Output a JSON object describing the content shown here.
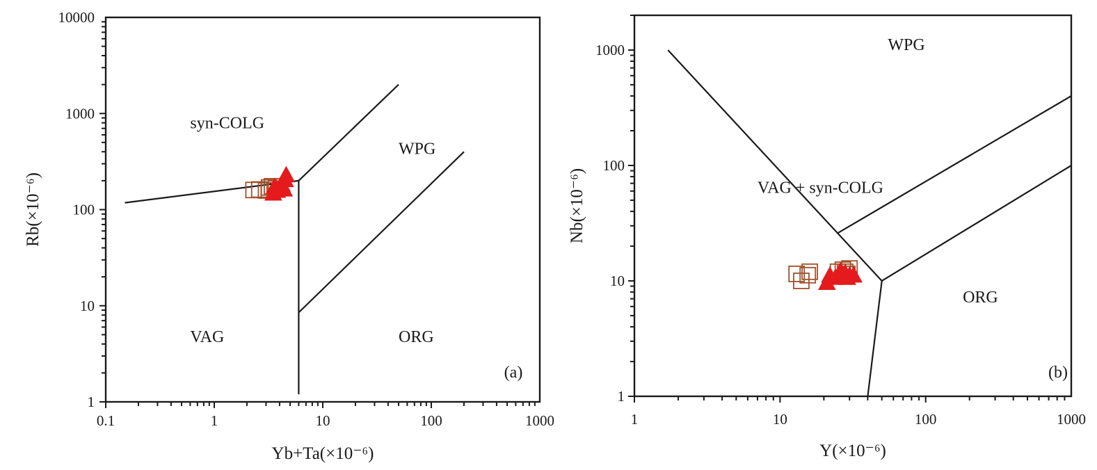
{
  "chart_data": [
    {
      "type": "scatter",
      "panel_label": "(a)",
      "xlabel": "Yb+Ta(×10⁻⁶)",
      "ylabel": "Rb(×10⁻⁶)",
      "xscale": "log",
      "yscale": "log",
      "xlim": [
        0.1,
        1000
      ],
      "ylim": [
        1,
        10000
      ],
      "x_ticks": [
        "0.1",
        "1",
        "10",
        "100",
        "1000"
      ],
      "y_ticks": [
        "1",
        "10",
        "100",
        "1000",
        "10000"
      ],
      "region_labels": [
        {
          "text": "syn-COLG",
          "x": 0.6,
          "y": 700
        },
        {
          "text": "WPG",
          "x": 50,
          "y": 380
        },
        {
          "text": "VAG",
          "x": 0.6,
          "y": 4.2
        },
        {
          "text": "ORG",
          "x": 50,
          "y": 4.2
        }
      ],
      "boundary_lines": [
        [
          [
            0.15,
            118
          ],
          [
            6,
            200
          ]
        ],
        [
          [
            6,
            1.2
          ],
          [
            6,
            200
          ],
          [
            50,
            2000
          ]
        ],
        [
          [
            6,
            8.5
          ],
          [
            200,
            400
          ]
        ]
      ],
      "colors": {
        "square": "#a0522d",
        "triangle": "#e41a1c",
        "line": "#1a1a1a"
      },
      "series": [
        {
          "marker": "square",
          "points": [
            [
              2.3,
              160
            ],
            [
              2.6,
              162
            ],
            [
              3.0,
              158
            ],
            [
              3.2,
              170
            ],
            [
              3.4,
              175
            ],
            [
              3.7,
              165
            ]
          ]
        },
        {
          "marker": "triangle",
          "points": [
            [
              3.5,
              145
            ],
            [
              3.8,
              155
            ],
            [
              4.0,
              168
            ],
            [
              4.2,
              180
            ],
            [
              4.5,
              200
            ],
            [
              4.6,
              225
            ],
            [
              3.6,
              170
            ],
            [
              4.4,
              160
            ]
          ]
        }
      ]
    },
    {
      "type": "scatter",
      "panel_label": "(b)",
      "xlabel": "Y(×10⁻⁶)",
      "ylabel": "Nb(×10⁻⁶)",
      "xscale": "log",
      "yscale": "log",
      "xlim": [
        1,
        1000
      ],
      "ylim": [
        1,
        2000
      ],
      "x_ticks": [
        "1",
        "10",
        "100",
        "1000"
      ],
      "y_ticks": [
        "1",
        "10",
        "100",
        "1000"
      ],
      "region_labels": [
        {
          "text": "WPG",
          "x": 55,
          "y": 1000
        },
        {
          "text": "VAG + syn-COLG",
          "x": 7,
          "y": 58
        },
        {
          "text": "ORG",
          "x": 180,
          "y": 6.5
        }
      ],
      "boundary_lines": [
        [
          [
            1.7,
            1000
          ],
          [
            50,
            10
          ],
          [
            40,
            1
          ]
        ],
        [
          [
            25,
            26
          ],
          [
            1000,
            400
          ]
        ],
        [
          [
            50,
            10
          ],
          [
            1000,
            100
          ]
        ]
      ],
      "colors": {
        "square": "#a0522d",
        "triangle": "#e41a1c",
        "line": "#1a1a1a"
      },
      "series": [
        {
          "marker": "square",
          "points": [
            [
              13,
              11.5
            ],
            [
              14,
              10
            ],
            [
              15.5,
              11.2
            ],
            [
              16,
              12
            ],
            [
              25,
              12
            ],
            [
              27,
              12.5
            ],
            [
              28,
              12
            ],
            [
              30,
              12.8
            ],
            [
              29,
              11.5
            ]
          ]
        },
        {
          "marker": "triangle",
          "points": [
            [
              21,
              9.5
            ],
            [
              22,
              11
            ],
            [
              24,
              10.5
            ],
            [
              26,
              12
            ],
            [
              28,
              11.5
            ],
            [
              29,
              10.5
            ],
            [
              30,
              11
            ],
            [
              32,
              11
            ]
          ]
        }
      ]
    }
  ]
}
